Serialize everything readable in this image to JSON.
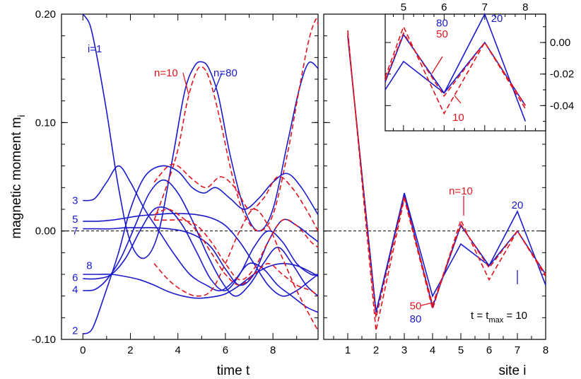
{
  "chart_data": [
    {
      "id": "left",
      "type": "line",
      "xlabel": "time  t",
      "ylabel": "magnetic moment  m",
      "ylabel_sub": "i",
      "xlim": [
        -0.9,
        9.9
      ],
      "ylim": [
        -0.1,
        0.2
      ],
      "x_ticks": [
        0,
        2,
        4,
        6,
        8
      ],
      "x_tick_labels": [
        "0",
        "2",
        "4",
        "6",
        "8"
      ],
      "y_ticks": [
        -0.1,
        0.0,
        0.1,
        0.2
      ],
      "y_tick_labels": [
        "-0.10",
        "0.00",
        "0.10",
        "0.20"
      ],
      "zero_line": 0,
      "site_labels": [
        {
          "text": "i=1",
          "t": 0.2,
          "m": 0.168
        },
        {
          "text": "3",
          "t": -0.45,
          "m": 0.028
        },
        {
          "text": "5",
          "t": -0.45,
          "m": 0.011
        },
        {
          "text": "7",
          "t": -0.45,
          "m": 0.0
        },
        {
          "text": "8",
          "t": 0.15,
          "m": -0.032
        },
        {
          "text": "6",
          "t": -0.45,
          "m": -0.043
        },
        {
          "text": "4",
          "t": -0.45,
          "m": -0.054
        },
        {
          "text": "2",
          "t": -0.45,
          "m": -0.092
        }
      ],
      "annotations": [
        {
          "text": "n=10",
          "color": "red",
          "t": 3.5,
          "m": 0.146
        },
        {
          "text": "n=80",
          "color": "blue",
          "t": 6.0,
          "m": 0.146
        }
      ],
      "series": [
        {
          "style": "blue",
          "x": [
            0,
            0.3,
            0.6,
            1.0,
            1.5,
            2.0,
            2.6,
            3.2,
            3.8,
            4.3,
            4.7,
            5.0,
            5.3,
            5.7,
            6.2,
            6.8,
            7.4,
            8.0,
            8.6,
            9.1,
            9.5,
            9.9
          ],
          "y": [
            0.2,
            0.19,
            0.16,
            0.11,
            0.04,
            -0.01,
            -0.025,
            0.0,
            0.07,
            0.13,
            0.152,
            0.156,
            0.15,
            0.125,
            0.07,
            0.02,
            0.0,
            0.02,
            0.08,
            0.13,
            0.155,
            0.15
          ]
        },
        {
          "style": "red",
          "x": [
            3.0,
            3.5,
            4.0,
            4.4,
            4.8,
            5.1,
            5.4,
            5.8,
            6.3,
            6.8,
            7.4,
            8.0,
            8.6,
            9.1,
            9.5,
            9.8,
            9.9
          ],
          "y": [
            0.01,
            0.04,
            0.075,
            0.12,
            0.148,
            0.15,
            0.135,
            0.1,
            0.05,
            0.015,
            0.0,
            0.015,
            0.07,
            0.13,
            0.175,
            0.195,
            0.19
          ]
        },
        {
          "style": "blue",
          "x": [
            0,
            0.4,
            0.9,
            1.5,
            2.0,
            2.6,
            3.3,
            4.0,
            4.6,
            5.1,
            5.6,
            6.2,
            6.8,
            7.4,
            8.0,
            8.6,
            9.2,
            9.9
          ],
          "y": [
            -0.095,
            -0.09,
            -0.06,
            -0.02,
            0.02,
            0.05,
            0.06,
            0.055,
            0.04,
            0.035,
            0.04,
            0.03,
            0.02,
            0.03,
            0.045,
            0.053,
            0.04,
            0.015
          ]
        },
        {
          "style": "red",
          "x": [
            3.0,
            3.6,
            4.0,
            4.6,
            5.2,
            5.8,
            6.4,
            7.0,
            7.6,
            8.2,
            8.8,
            9.4,
            9.9
          ],
          "y": [
            0.045,
            0.06,
            0.06,
            0.048,
            0.04,
            0.05,
            0.04,
            0.02,
            0.03,
            0.05,
            0.04,
            0.02,
            0.0
          ]
        },
        {
          "style": "blue",
          "x": [
            0,
            0.5,
            1.0,
            1.5,
            2.0,
            2.6,
            3.2,
            3.8,
            4.5,
            5.2,
            5.8,
            6.4,
            7.0,
            7.6,
            8.2,
            8.8,
            9.4,
            9.9
          ],
          "y": [
            0.028,
            0.03,
            0.045,
            0.06,
            0.045,
            0.02,
            0.0,
            -0.02,
            -0.04,
            -0.05,
            -0.055,
            -0.045,
            -0.03,
            -0.035,
            -0.05,
            -0.06,
            -0.07,
            -0.075
          ]
        },
        {
          "style": "blue",
          "x": [
            0,
            0.5,
            1.0,
            1.6,
            2.2,
            2.8,
            3.4,
            4.0,
            4.6,
            5.2,
            5.8,
            6.4,
            7.0,
            7.6,
            8.2,
            8.8,
            9.4,
            9.9
          ],
          "y": [
            -0.055,
            -0.054,
            -0.045,
            -0.025,
            0.005,
            0.035,
            0.047,
            0.035,
            0.01,
            -0.02,
            -0.045,
            -0.06,
            -0.05,
            -0.03,
            -0.015,
            -0.03,
            -0.05,
            -0.06
          ]
        },
        {
          "style": "blue",
          "x": [
            0,
            0.6,
            1.2,
            1.8,
            2.4,
            3.0,
            3.6,
            4.2,
            4.8,
            5.4,
            6.0,
            6.6,
            7.2,
            7.8,
            8.4,
            9.0,
            9.6,
            9.9
          ],
          "y": [
            0.009,
            0.009,
            0.01,
            0.012,
            0.014,
            0.015,
            0.016,
            0.016,
            0.015,
            0.012,
            0.005,
            -0.01,
            -0.03,
            -0.05,
            -0.06,
            -0.055,
            -0.045,
            -0.04
          ]
        },
        {
          "style": "blue",
          "x": [
            0,
            0.6,
            1.2,
            1.8,
            2.4,
            3.0,
            3.6,
            4.2,
            4.8,
            5.4,
            6.0,
            6.6,
            7.2,
            7.8,
            8.4,
            9.0,
            9.6,
            9.9
          ],
          "y": [
            -0.044,
            -0.044,
            -0.04,
            -0.025,
            0.0,
            0.02,
            0.02,
            0.005,
            -0.02,
            -0.045,
            -0.055,
            -0.04,
            -0.015,
            0.0,
            -0.01,
            -0.03,
            -0.04,
            -0.04
          ]
        },
        {
          "style": "blue",
          "x": [
            0,
            0.6,
            1.2,
            1.8,
            2.4,
            3.0,
            3.6,
            4.2,
            4.8,
            5.4,
            6.0,
            6.6,
            7.2,
            7.8,
            8.4,
            9.0,
            9.6,
            9.9
          ],
          "y": [
            0.002,
            0.002,
            0.002,
            0.003,
            0.003,
            0.003,
            0.002,
            0.0,
            -0.005,
            -0.015,
            -0.035,
            -0.05,
            -0.04,
            -0.01,
            0.01,
            0.005,
            -0.005,
            -0.01
          ]
        },
        {
          "style": "blue",
          "x": [
            0,
            0.6,
            1.2,
            1.8,
            2.4,
            3.0,
            3.6,
            4.2,
            4.8,
            5.4,
            6.0,
            6.6,
            7.2,
            7.8,
            8.4,
            9.0,
            9.6,
            9.9
          ],
          "y": [
            -0.04,
            -0.04,
            -0.04,
            -0.042,
            -0.045,
            -0.05,
            -0.056,
            -0.06,
            -0.062,
            -0.061,
            -0.058,
            -0.05,
            -0.04,
            -0.033,
            -0.03,
            -0.032,
            -0.038,
            -0.042
          ]
        },
        {
          "style": "red",
          "x": [
            3.0,
            3.6,
            4.2,
            4.8,
            5.4,
            6.0,
            6.6,
            7.2,
            7.8,
            8.4,
            9.0,
            9.6,
            9.9
          ],
          "y": [
            0.015,
            0.02,
            0.012,
            0.0,
            -0.02,
            -0.04,
            -0.05,
            -0.04,
            -0.03,
            -0.04,
            -0.05,
            -0.055,
            -0.06
          ]
        },
        {
          "style": "red",
          "x": [
            3.0,
            3.6,
            4.2,
            4.8,
            5.4,
            6.0,
            6.6,
            7.2,
            7.8,
            8.4,
            9.0,
            9.6,
            9.9
          ],
          "y": [
            -0.03,
            -0.045,
            -0.055,
            -0.06,
            -0.055,
            -0.03,
            0.0,
            0.02,
            0.005,
            -0.025,
            -0.055,
            -0.08,
            -0.092
          ]
        },
        {
          "style": "red",
          "x": [
            3.0,
            3.6,
            4.2,
            4.8,
            5.4,
            6.0,
            6.6,
            7.2,
            7.8,
            8.4,
            9.0,
            9.6,
            9.9
          ],
          "y": [
            0.01,
            0.01,
            0.01,
            0.005,
            -0.01,
            -0.03,
            -0.045,
            -0.035,
            -0.01,
            0.01,
            0.005,
            -0.01,
            -0.015
          ]
        }
      ]
    },
    {
      "id": "right",
      "type": "line",
      "xlabel": "site  i",
      "xlim": [
        0.15,
        8
      ],
      "ylim": [
        -0.1,
        0.2
      ],
      "x_ticks": [
        1,
        2,
        3,
        4,
        5,
        6,
        7,
        8
      ],
      "x_tick_labels": [
        "1",
        "2",
        "3",
        "4",
        "5",
        "6",
        "7",
        "8"
      ],
      "zero_line": 0,
      "annotations": [
        {
          "text": "n=10",
          "color": "red",
          "x": 5.0,
          "m": 0.037
        },
        {
          "text": "20",
          "color": "blue",
          "x": 7.0,
          "m": 0.024
        },
        {
          "text": "50",
          "color": "red",
          "x": 3.4,
          "m": -0.069
        },
        {
          "text": "80",
          "color": "blue",
          "x": 3.4,
          "m": -0.081
        }
      ],
      "label_t": "t = t",
      "label_tmax_sub": "max",
      "label_tmax_rest": " = 10",
      "series": [
        {
          "style": "blue",
          "x": [
            1,
            2,
            3,
            4,
            5,
            6,
            7,
            8
          ],
          "y": [
            0.18,
            -0.075,
            0.035,
            -0.06,
            -0.012,
            -0.032,
            0.018,
            -0.05
          ]
        },
        {
          "style": "blue",
          "x": [
            1,
            2,
            3,
            4,
            5,
            6,
            7,
            8
          ],
          "y": [
            0.18,
            -0.075,
            0.033,
            -0.07,
            0.005,
            -0.032,
            0.0,
            -0.04
          ]
        },
        {
          "style": "red",
          "x": [
            1,
            2,
            3,
            4,
            5,
            6,
            7,
            8
          ],
          "y": [
            0.185,
            -0.092,
            0.03,
            -0.072,
            0.01,
            -0.045,
            0.0,
            -0.042
          ]
        },
        {
          "style": "red",
          "x": [
            1,
            2,
            3,
            4,
            5,
            6,
            7,
            8
          ],
          "y": [
            0.182,
            -0.08,
            0.032,
            -0.068,
            0.006,
            -0.034,
            0.0,
            -0.04
          ]
        }
      ]
    },
    {
      "id": "inset",
      "type": "line",
      "xlim": [
        4.55,
        8.5
      ],
      "ylim": [
        -0.056,
        0.018
      ],
      "x_ticks": [
        5,
        6,
        7,
        8
      ],
      "x_tick_labels": [
        "5",
        "6",
        "7",
        "8"
      ],
      "y_ticks": [
        0.0,
        -0.02,
        -0.04
      ],
      "y_tick_labels": [
        "0.00",
        "-0.02",
        "-0.04"
      ],
      "annotations": [
        {
          "text": "80",
          "color": "blue",
          "x": 5.95,
          "m": 0.0125
        },
        {
          "text": "50",
          "color": "red",
          "x": 5.95,
          "m": 0.0055
        },
        {
          "text": "20",
          "color": "blue",
          "x": 7.3,
          "m": 0.0152
        },
        {
          "text": "10",
          "color": "red",
          "x": 6.35,
          "m": -0.0475
        }
      ],
      "series": [
        {
          "style": "blue",
          "x": [
            4.55,
            5,
            6,
            7,
            8
          ],
          "y": [
            -0.03,
            -0.012,
            -0.032,
            0.018,
            -0.05
          ]
        },
        {
          "style": "blue",
          "x": [
            4.55,
            5,
            6,
            7,
            8
          ],
          "y": [
            -0.025,
            0.005,
            -0.032,
            0.0,
            -0.04
          ]
        },
        {
          "style": "red",
          "x": [
            4.55,
            5,
            6,
            7,
            8
          ],
          "y": [
            -0.022,
            0.01,
            -0.045,
            0.0,
            -0.042
          ]
        },
        {
          "style": "red",
          "x": [
            4.55,
            5,
            6,
            7,
            8
          ],
          "y": [
            -0.024,
            0.006,
            -0.034,
            0.0,
            -0.04
          ]
        }
      ]
    }
  ]
}
